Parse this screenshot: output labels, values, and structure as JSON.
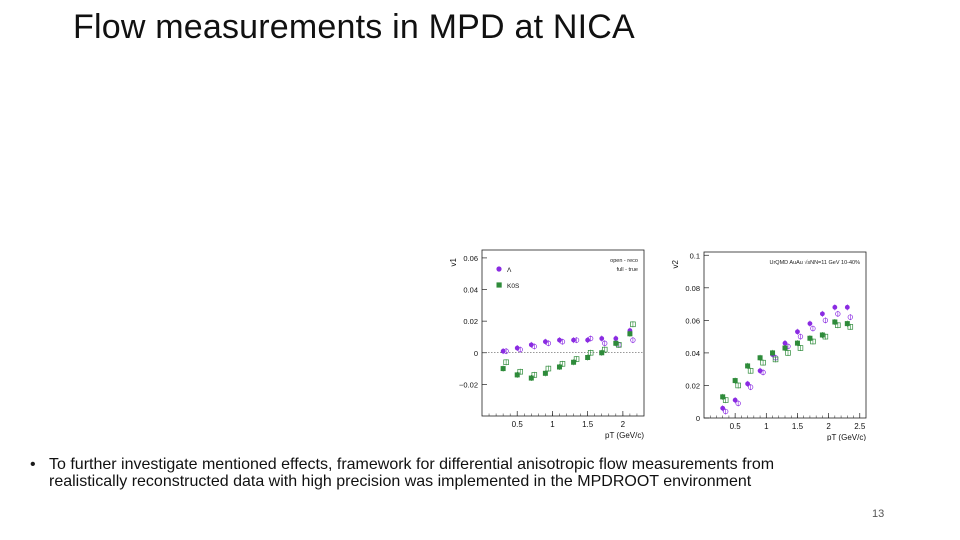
{
  "slide": {
    "title": "Flow measurements in MPD at NICA",
    "bullet_symbol": "•",
    "bullet_text": "To further investigate mentioned effects, framework for differential anisotropic flow measurements from realistically reconstructed data with high precision was implemented in the MPDROOT environment",
    "page_number": "13"
  },
  "colors": {
    "lambda": "#8a2be2",
    "k0s": "#2e8b3a"
  },
  "chart_data": [
    {
      "type": "scatter",
      "ylabel": "v1",
      "xlabel": "pT (GeV/c)",
      "xlim": [
        0,
        2.3
      ],
      "ylim": [
        -0.04,
        0.065
      ],
      "xticks": [
        0.5,
        1,
        1.5,
        2
      ],
      "xtick_labels": [
        "0.5",
        "1",
        "1.5",
        "2"
      ],
      "yticks": [
        -0.02,
        0,
        0.02,
        0.04,
        0.06
      ],
      "ytick_labels": [
        "−0.02",
        "0",
        "0.02",
        "0.04",
        "0.06"
      ],
      "zero_line": true,
      "legend_markers": [
        "Λ",
        "K0S"
      ],
      "annotations": [
        "open - reco",
        "full - true"
      ],
      "series": [
        {
          "name": "Λ",
          "style": "filled-circle",
          "color": "#8a2be2",
          "x": [
            0.3,
            0.5,
            0.7,
            0.9,
            1.1,
            1.3,
            1.5,
            1.7,
            1.9,
            2.1
          ],
          "y": [
            0.001,
            0.003,
            0.005,
            0.007,
            0.008,
            0.008,
            0.008,
            0.009,
            0.009,
            0.014
          ]
        },
        {
          "name": "Λ",
          "style": "open-circle",
          "color": "#8a2be2",
          "x": [
            0.3,
            0.5,
            0.7,
            0.9,
            1.1,
            1.3,
            1.5,
            1.7,
            1.9,
            2.1
          ],
          "y": [
            0.001,
            0.002,
            0.004,
            0.006,
            0.007,
            0.008,
            0.009,
            0.006,
            0.005,
            0.008
          ]
        },
        {
          "name": "K0S",
          "style": "filled-square",
          "color": "#2e8b3a",
          "x": [
            0.3,
            0.5,
            0.7,
            0.9,
            1.1,
            1.3,
            1.5,
            1.7,
            1.9,
            2.1
          ],
          "y": [
            -0.01,
            -0.014,
            -0.016,
            -0.013,
            -0.009,
            -0.006,
            -0.003,
            0.0,
            0.006,
            0.012
          ]
        },
        {
          "name": "K0S",
          "style": "open-square",
          "color": "#2e8b3a",
          "x": [
            0.3,
            0.5,
            0.7,
            0.9,
            1.1,
            1.3,
            1.5,
            1.7,
            1.9,
            2.1
          ],
          "y": [
            -0.006,
            -0.012,
            -0.014,
            -0.01,
            -0.007,
            -0.004,
            0.0,
            0.002,
            0.005,
            0.018
          ]
        }
      ]
    },
    {
      "type": "scatter",
      "ylabel": "v2",
      "xlabel": "pT (GeV/c)",
      "xlim": [
        0,
        2.6
      ],
      "ylim": [
        0,
        0.102
      ],
      "xticks": [
        0.5,
        1,
        1.5,
        2,
        2.5
      ],
      "xtick_labels": [
        "0.5",
        "1",
        "1.5",
        "2",
        "2.5"
      ],
      "yticks": [
        0,
        0.02,
        0.04,
        0.06,
        0.08,
        0.1
      ],
      "ytick_labels": [
        "0",
        "0.02",
        "0.04",
        "0.06",
        "0.08",
        "0.1"
      ],
      "annotations": [
        "UrQMD AuAu √sNN=11 GeV 10-40%"
      ],
      "series": [
        {
          "name": "Λ",
          "style": "filled-circle",
          "color": "#8a2be2",
          "x": [
            0.3,
            0.5,
            0.7,
            0.9,
            1.1,
            1.3,
            1.5,
            1.7,
            1.9,
            2.1,
            2.3
          ],
          "y": [
            0.006,
            0.011,
            0.021,
            0.029,
            0.039,
            0.046,
            0.053,
            0.058,
            0.064,
            0.068,
            0.068
          ]
        },
        {
          "name": "Λ",
          "style": "open-circle",
          "color": "#8a2be2",
          "x": [
            0.3,
            0.5,
            0.7,
            0.9,
            1.1,
            1.3,
            1.5,
            1.7,
            1.9,
            2.1,
            2.3
          ],
          "y": [
            0.004,
            0.009,
            0.019,
            0.028,
            0.037,
            0.044,
            0.05,
            0.055,
            0.06,
            0.064,
            0.062
          ]
        },
        {
          "name": "K0S",
          "style": "filled-square",
          "color": "#2e8b3a",
          "x": [
            0.3,
            0.5,
            0.7,
            0.9,
            1.1,
            1.3,
            1.5,
            1.7,
            1.9,
            2.1,
            2.3
          ],
          "y": [
            0.013,
            0.023,
            0.032,
            0.037,
            0.04,
            0.043,
            0.046,
            0.049,
            0.051,
            0.059,
            0.058
          ]
        },
        {
          "name": "K0S",
          "style": "open-square",
          "color": "#2e8b3a",
          "x": [
            0.3,
            0.5,
            0.7,
            0.9,
            1.1,
            1.3,
            1.5,
            1.7,
            1.9,
            2.1,
            2.3
          ],
          "y": [
            0.011,
            0.02,
            0.029,
            0.034,
            0.036,
            0.04,
            0.043,
            0.047,
            0.05,
            0.057,
            0.056
          ]
        }
      ]
    }
  ]
}
